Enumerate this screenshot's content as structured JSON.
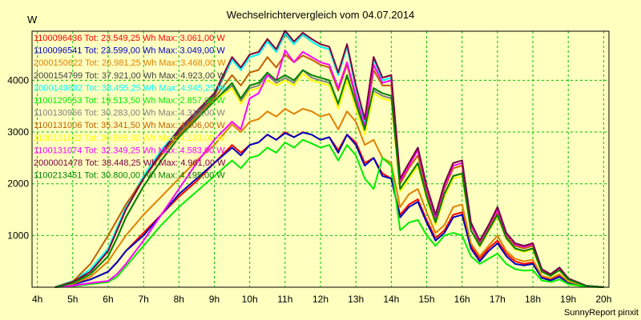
{
  "chart_data": {
    "type": "line",
    "title": "Wechselrichtervergleich vom 04.07.2014",
    "ylabel": "W",
    "credit": "SunnyReport pinxit",
    "ylim": [
      0,
      4950
    ],
    "xlim": [
      3.85,
      20.15
    ],
    "yticks": [
      1000,
      2000,
      3000,
      4000
    ],
    "xticks": [
      {
        "x": 4,
        "label": "4h"
      },
      {
        "x": 5,
        "label": "5h"
      },
      {
        "x": 6,
        "label": "6h"
      },
      {
        "x": 7,
        "label": "7h"
      },
      {
        "x": 8,
        "label": "8h"
      },
      {
        "x": 9,
        "label": "9h"
      },
      {
        "x": 10,
        "label": "10h"
      },
      {
        "x": 11,
        "label": "11h"
      },
      {
        "x": 12,
        "label": "12h"
      },
      {
        "x": 13,
        "label": "13h"
      },
      {
        "x": 14,
        "label": "14h"
      },
      {
        "x": 15,
        "label": "15h"
      },
      {
        "x": 16,
        "label": "16h"
      },
      {
        "x": 17,
        "label": "17h"
      },
      {
        "x": 18,
        "label": "18h"
      },
      {
        "x": 19,
        "label": "19h"
      },
      {
        "x": 20,
        "label": "20h"
      }
    ],
    "grid": true,
    "legend_position": "top-left",
    "x": [
      4.5,
      5,
      5.5,
      6,
      6.25,
      6.5,
      7,
      7.5,
      8,
      8.5,
      9,
      9.5,
      9.75,
      10,
      10.25,
      10.5,
      10.75,
      11,
      11.25,
      11.5,
      11.75,
      12,
      12.25,
      12.5,
      12.75,
      13,
      13.25,
      13.5,
      13.75,
      14,
      14.25,
      14.5,
      14.75,
      15,
      15.25,
      15.5,
      15.75,
      16,
      16.25,
      16.5,
      16.75,
      17,
      17.25,
      17.5,
      17.75,
      18,
      18.25,
      18.5,
      18.75,
      19,
      19.5,
      20
    ],
    "series": [
      {
        "name": "1100096436",
        "legend": "1100096436 Tot: 23.549,25 Wh Max: 3.061,00 W",
        "color": "#ff0000",
        "values": [
          0,
          60,
          150,
          300,
          480,
          700,
          1050,
          1400,
          1750,
          2050,
          2400,
          2750,
          2600,
          2750,
          2800,
          2950,
          2850,
          3000,
          2900,
          3000,
          2950,
          2850,
          2900,
          2650,
          2950,
          2800,
          2400,
          2500,
          2200,
          2100,
          1400,
          1600,
          1700,
          1300,
          950,
          1100,
          1400,
          1450,
          800,
          550,
          750,
          900,
          650,
          500,
          450,
          480,
          200,
          150,
          220,
          100,
          20,
          0
        ]
      },
      {
        "name": "1100096541",
        "legend": "1100096541 Tot: 23.599,00 Wh Max: 3.049,00 W",
        "color": "#0000c0",
        "values": [
          0,
          50,
          150,
          300,
          480,
          700,
          1000,
          1400,
          1800,
          2100,
          2400,
          2700,
          2550,
          2750,
          2800,
          2950,
          2850,
          2980,
          2900,
          2990,
          2950,
          2850,
          2900,
          2600,
          2950,
          2750,
          2350,
          2500,
          2150,
          2100,
          1350,
          1550,
          1650,
          1250,
          900,
          1050,
          1350,
          1400,
          750,
          500,
          700,
          850,
          600,
          450,
          420,
          450,
          180,
          130,
          200,
          90,
          15,
          0
        ]
      },
      {
        "name": "2000150622",
        "legend": "2000150622 Tot: 26.981,25 Wh Max: 3.468,00 W",
        "color": "#e08000",
        "values": [
          0,
          60,
          200,
          500,
          750,
          1000,
          1400,
          1750,
          2100,
          2450,
          2750,
          3150,
          3000,
          3200,
          3250,
          3400,
          3300,
          3450,
          3350,
          3450,
          3400,
          3300,
          3350,
          3050,
          3400,
          3200,
          2750,
          2850,
          2500,
          2400,
          1550,
          1800,
          1900,
          1450,
          1050,
          1200,
          1550,
          1600,
          850,
          600,
          800,
          1000,
          700,
          550,
          500,
          530,
          220,
          170,
          250,
          110,
          20,
          0
        ]
      },
      {
        "name": "2000154799",
        "legend": "2000154799 Tot: 37.921,00 Wh Max: 4.923,00 W",
        "color": "#404040",
        "values": [
          0,
          100,
          300,
          700,
          1100,
          1500,
          2100,
          2600,
          3000,
          3350,
          3700,
          4400,
          4200,
          4450,
          4500,
          4750,
          4550,
          4900,
          4700,
          4880,
          4750,
          4650,
          4600,
          4100,
          4650,
          3850,
          3200,
          4450,
          4050,
          4100,
          2100,
          2400,
          2700,
          1950,
          1400,
          2000,
          2400,
          2450,
          1250,
          900,
          1200,
          1550,
          1050,
          850,
          800,
          850,
          350,
          250,
          380,
          170,
          30,
          0
        ]
      },
      {
        "name": "2000149892",
        "legend": "2000149892 Tot: 38.455,25 Wh Max: 4.945,25 W",
        "color": "#00ffff",
        "values": [
          0,
          120,
          350,
          750,
          1150,
          1550,
          2150,
          2650,
          3050,
          3400,
          3750,
          4400,
          4200,
          4450,
          4500,
          4750,
          4550,
          4920,
          4700,
          4890,
          4750,
          4650,
          4600,
          4100,
          4650,
          3850,
          3200,
          4400,
          4000,
          4050,
          2100,
          2400,
          2700,
          1950,
          1400,
          2000,
          2400,
          2450,
          1250,
          900,
          1200,
          1550,
          1050,
          850,
          800,
          850,
          350,
          250,
          380,
          170,
          30,
          0
        ]
      },
      {
        "name": "1100129553",
        "legend": "1100129553 Tot: 19.513,50 Wh Max: 2.857,00 W",
        "color": "#00ee00",
        "values": [
          0,
          20,
          60,
          100,
          200,
          400,
          800,
          1200,
          1550,
          1850,
          2150,
          2450,
          2300,
          2500,
          2550,
          2700,
          2600,
          2800,
          2700,
          2850,
          2780,
          2700,
          2750,
          2450,
          2750,
          2550,
          2100,
          1900,
          2500,
          2350,
          1100,
          1250,
          1300,
          1000,
          800,
          1000,
          1050,
          1000,
          600,
          450,
          550,
          650,
          450,
          350,
          320,
          330,
          130,
          100,
          150,
          60,
          10,
          0
        ]
      },
      {
        "name": "1100130966",
        "legend": "1100130966 Tot: 30.283,00 Wh Max: 4.313,00 W",
        "color": "#808080",
        "values": [
          0,
          80,
          250,
          600,
          950,
          1350,
          1950,
          2450,
          2900,
          3250,
          3600,
          3900,
          3600,
          3850,
          3900,
          4100,
          3950,
          4050,
          3950,
          4200,
          4050,
          4000,
          3950,
          3500,
          4050,
          3500,
          3000,
          3800,
          3700,
          3650,
          1900,
          2150,
          2400,
          1750,
          1250,
          1800,
          2150,
          2200,
          1100,
          800,
          1100,
          1400,
          950,
          750,
          700,
          750,
          300,
          220,
          330,
          150,
          25,
          0
        ]
      },
      {
        "name": "1100131006",
        "legend": "1100131006 Tot: 35.341,50 Wh Max: 4.506,00 W",
        "color": "#c06000",
        "values": [
          0,
          110,
          450,
          1000,
          1300,
          1600,
          2100,
          2550,
          2950,
          3300,
          3650,
          4100,
          3900,
          4150,
          4200,
          4450,
          4250,
          4500,
          4350,
          4480,
          4400,
          4300,
          4250,
          3800,
          4300,
          3650,
          3050,
          4200,
          3900,
          3900,
          2000,
          2300,
          2550,
          1850,
          1300,
          1900,
          2300,
          2350,
          1200,
          850,
          1150,
          1450,
          1000,
          800,
          750,
          800,
          330,
          240,
          360,
          160,
          25,
          0
        ]
      },
      {
        "name": "1100131022",
        "legend": "1100131022 Tot: 30.585,50 Wh Max: 4.133,00 W",
        "color": "#ffff00",
        "values": [
          0,
          80,
          250,
          600,
          950,
          1350,
          1950,
          2450,
          2900,
          3250,
          3600,
          3850,
          3550,
          3800,
          3850,
          4000,
          3900,
          4000,
          3900,
          4130,
          4000,
          3950,
          3900,
          3450,
          4000,
          3450,
          2950,
          3750,
          3650,
          3600,
          1850,
          2100,
          2350,
          1700,
          1200,
          1750,
          2100,
          2150,
          1100,
          780,
          1080,
          1380,
          930,
          730,
          680,
          730,
          290,
          210,
          320,
          140,
          25,
          0
        ]
      },
      {
        "name": "1100131074",
        "legend": "1100131074 Tot: 32.349,25 Wh Max: 4.583,00 W",
        "color": "#ff00ff",
        "values": [
          0,
          30,
          80,
          120,
          250,
          450,
          900,
          1400,
          1900,
          2400,
          2850,
          3200,
          3050,
          3650,
          3750,
          4100,
          4000,
          4580,
          4350,
          4550,
          4450,
          4350,
          4300,
          3850,
          4350,
          3700,
          3100,
          4300,
          3950,
          4000,
          2050,
          2350,
          2650,
          1900,
          1350,
          1950,
          2350,
          2400,
          1200,
          880,
          1180,
          1500,
          1030,
          830,
          780,
          830,
          340,
          250,
          370,
          165,
          30,
          0
        ]
      },
      {
        "name": "2000001478",
        "legend": "2000001478 Tot: 38.448,25 Wh Max: 4.961,00 W",
        "color": "#800040",
        "values": [
          0,
          100,
          300,
          700,
          1100,
          1500,
          2100,
          2600,
          3050,
          3400,
          3750,
          4450,
          4250,
          4500,
          4550,
          4800,
          4600,
          4960,
          4750,
          4920,
          4800,
          4700,
          4650,
          4150,
          4700,
          3900,
          3250,
          4450,
          4050,
          4100,
          2100,
          2400,
          2700,
          1950,
          1400,
          2000,
          2400,
          2450,
          1250,
          900,
          1200,
          1550,
          1050,
          850,
          800,
          850,
          350,
          250,
          380,
          170,
          30,
          0
        ]
      },
      {
        "name": "1100213451",
        "legend": "1100213451 Tot: 30.800,00 Wh Max: 4.195,00 W",
        "color": "#008000",
        "values": [
          0,
          80,
          250,
          600,
          950,
          1350,
          1950,
          2450,
          2900,
          3250,
          3600,
          3950,
          3650,
          3900,
          3950,
          4150,
          4000,
          4100,
          4000,
          4195,
          4100,
          4050,
          4000,
          3550,
          4100,
          3550,
          3050,
          3850,
          3750,
          3700,
          1900,
          2150,
          2400,
          1750,
          1250,
          1800,
          2150,
          2200,
          1100,
          800,
          1100,
          1400,
          950,
          750,
          700,
          750,
          300,
          220,
          330,
          150,
          25,
          0
        ]
      }
    ]
  }
}
